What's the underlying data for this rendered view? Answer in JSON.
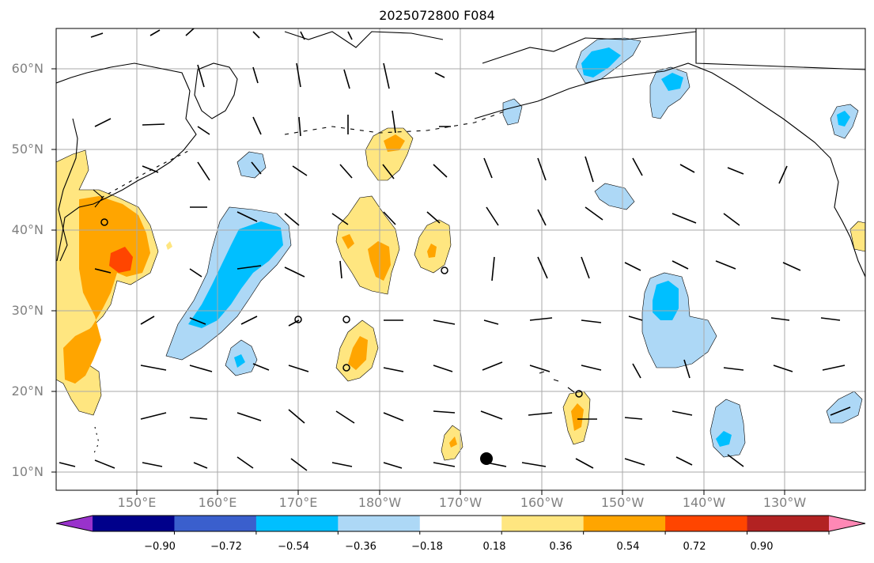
{
  "title": "2025072800 F084",
  "map": {
    "lat_labels": [
      "60°N",
      "50°N",
      "40°N",
      "30°N",
      "20°N",
      "10°N"
    ],
    "lon_labels": [
      "150°E",
      "160°E",
      "170°E",
      "180°W",
      "170°W",
      "160°W",
      "150°W",
      "140°W",
      "130°W"
    ],
    "extent": {
      "lon_min": 140,
      "lon_max": 240,
      "lat_min": 8,
      "lat_max": 65
    }
  },
  "colorbar": {
    "tick_labels": [
      "−0.90",
      "−0.72",
      "−0.54",
      "−0.36",
      "−0.18",
      "0.18",
      "0.36",
      "0.54",
      "0.72",
      "0.90"
    ],
    "colors": [
      "#9932cc",
      "#00008b",
      "#3a5fcd",
      "#00bfff",
      "#add8f6",
      "#ffffff",
      "#ffe680",
      "#ffa500",
      "#ff4500",
      "#b22222",
      "#ff88b5"
    ],
    "extend": "both"
  },
  "colors": {
    "light_yellow": "#ffe680",
    "orange": "#ffa500",
    "red_orange": "#ff4500",
    "light_blue": "#add8f6",
    "deep_sky_blue": "#00bfff",
    "grid": "#aaaaaa",
    "coastline": "#000000"
  }
}
